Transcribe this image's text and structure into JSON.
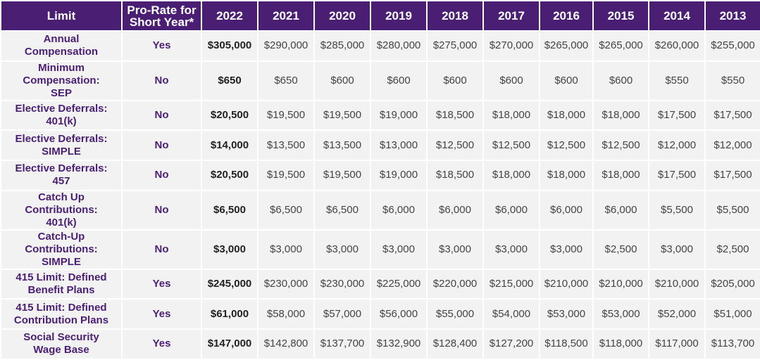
{
  "table": {
    "header": [
      "Limit",
      "Pro-Rate for Short Year*",
      "2022",
      "2021",
      "2020",
      "2019",
      "2018",
      "2017",
      "2016",
      "2015",
      "2014",
      "2013"
    ],
    "rows": [
      [
        "Annual Compensation",
        "Yes",
        "$305,000",
        "$290,000",
        "$285,000",
        "$280,000",
        "$275,000",
        "$270,000",
        "$265,000",
        "$265,000",
        "$260,000",
        "$255,000"
      ],
      [
        "Minimum Compensation: SEP",
        "No",
        "$650",
        "$650",
        "$600",
        "$600",
        "$600",
        "$600",
        "$600",
        "$600",
        "$550",
        "$550"
      ],
      [
        "Elective Deferrals: 401(k)",
        "No",
        "$20,500",
        "$19,500",
        "$19,500",
        "$19,000",
        "$18,500",
        "$18,000",
        "$18,000",
        "$18,000",
        "$17,500",
        "$17,500"
      ],
      [
        "Elective Deferrals: SIMPLE",
        "No",
        "$14,000",
        "$13,500",
        "$13,500",
        "$13,000",
        "$12,500",
        "$12,500",
        "$12,500",
        "$12,500",
        "$12,000",
        "$12,000"
      ],
      [
        "Elective Deferrals: 457",
        "No",
        "$20,500",
        "$19,500",
        "$19,500",
        "$19,000",
        "$18,500",
        "$18,000",
        "$18,000",
        "$18,000",
        "$17,500",
        "$17,500"
      ],
      [
        "Catch Up Contributions: 401(k)",
        "No",
        "$6,500",
        "$6,500",
        "$6,500",
        "$6,000",
        "$6,000",
        "$6,000",
        "$6,000",
        "$6,000",
        "$5,500",
        "$5,500"
      ],
      [
        "Catch-Up Contributions: SIMPLE",
        "No",
        "$3,000",
        "$3,000",
        "$3,000",
        "$3,000",
        "$3,000",
        "$3,000",
        "$3,000",
        "$2,500",
        "$3,000",
        "$2,500"
      ],
      [
        "415 Limit: Defined Benefit Plans",
        "Yes",
        "$245,000",
        "$230,000",
        "$230,000",
        "$225,000",
        "$220,000",
        "$215,000",
        "$210,000",
        "$210,000",
        "$210,000",
        "$205,000"
      ],
      [
        "415 Limit: Defined Contribution Plans",
        "Yes",
        "$61,000",
        "$58,000",
        "$57,000",
        "$56,000",
        "$55,000",
        "$54,000",
        "$53,000",
        "$53,000",
        "$52,000",
        "$51,000"
      ],
      [
        "Social Security Wage Base",
        "Yes",
        "$147,000",
        "$142,800",
        "$137,700",
        "$132,900",
        "$128,400",
        "$127,200",
        "$118,500",
        "$118,000",
        "$117,000",
        "$113,700"
      ]
    ]
  }
}
